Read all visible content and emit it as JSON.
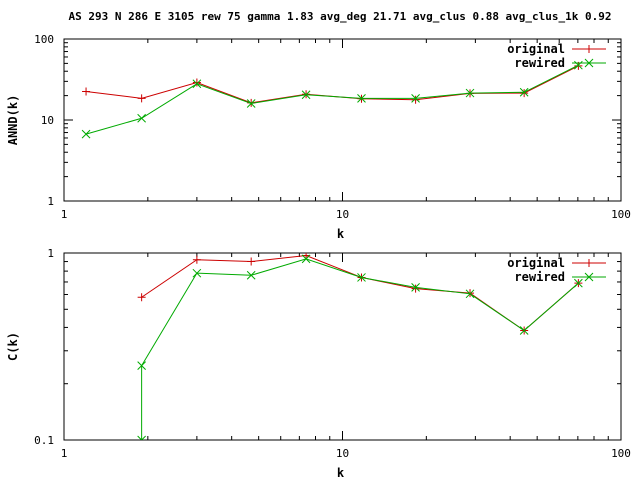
{
  "page_title": "AS 293 N 286 E 3105 rew 75 gamma 1.83 avg_deg 21.71 avg_clus 0.88 avg_clus_1k 0.92",
  "colors": {
    "original": "#cc0000",
    "rewired": "#00aa00",
    "axes": "#000000"
  },
  "chart_data": [
    {
      "type": "line",
      "xlabel": "k",
      "ylabel": "ANND(k)",
      "xscale": "log",
      "yscale": "log",
      "xlim": [
        1,
        100
      ],
      "ylim": [
        1,
        100
      ],
      "xticks": [
        {
          "value": 1,
          "label": "1"
        },
        {
          "value": 10,
          "label": "10"
        },
        {
          "value": 100,
          "label": "100"
        }
      ],
      "yticks": [
        {
          "value": 1,
          "label": "1"
        },
        {
          "value": 10,
          "label": "10"
        },
        {
          "value": 100,
          "label": "100"
        }
      ],
      "grid": false,
      "legend_position": "top-right",
      "series": [
        {
          "name": "original",
          "marker": "plus",
          "points": [
            [
              1.2,
              22.5
            ],
            [
              1.9,
              18.5
            ],
            [
              3.0,
              29.0
            ],
            [
              4.7,
              16.3
            ],
            [
              7.4,
              20.8
            ],
            [
              11.7,
              18.3
            ],
            [
              18.3,
              17.8
            ],
            [
              28.7,
              21.3
            ],
            [
              44.9,
              21.5
            ],
            [
              70.3,
              46.5
            ]
          ]
        },
        {
          "name": "rewired",
          "marker": "cross",
          "points": [
            [
              1.2,
              6.7
            ],
            [
              1.9,
              10.5
            ],
            [
              3.0,
              28.0
            ],
            [
              4.7,
              16.0
            ],
            [
              7.4,
              20.5
            ],
            [
              11.7,
              18.5
            ],
            [
              18.3,
              18.5
            ],
            [
              28.7,
              21.5
            ],
            [
              44.9,
              22.0
            ],
            [
              70.3,
              47.5
            ]
          ]
        }
      ]
    },
    {
      "type": "line",
      "xlabel": "k",
      "ylabel": "C(k)",
      "xscale": "log",
      "yscale": "log",
      "xlim": [
        1,
        100
      ],
      "ylim": [
        0.1,
        1
      ],
      "xticks": [
        {
          "value": 1,
          "label": "1"
        },
        {
          "value": 10,
          "label": "10"
        },
        {
          "value": 100,
          "label": "100"
        }
      ],
      "yticks": [
        {
          "value": 0.1,
          "label": "0.1"
        },
        {
          "value": 1,
          "label": "1"
        }
      ],
      "grid": false,
      "legend_position": "top-right",
      "series": [
        {
          "name": "original",
          "marker": "plus",
          "points": [
            [
              1.9,
              0.58
            ],
            [
              3.0,
              0.92
            ],
            [
              4.7,
              0.9
            ],
            [
              7.4,
              0.97
            ],
            [
              11.7,
              0.74
            ],
            [
              18.3,
              0.645
            ],
            [
              28.7,
              0.61
            ],
            [
              44.9,
              0.385
            ],
            [
              70.3,
              0.69
            ]
          ]
        },
        {
          "name": "rewired",
          "marker": "cross",
          "points": [
            [
              1.9,
              0.1
            ],
            [
              1.9,
              0.25
            ],
            [
              3.0,
              0.78
            ],
            [
              4.7,
              0.76
            ],
            [
              7.4,
              0.93
            ],
            [
              11.7,
              0.74
            ],
            [
              18.3,
              0.655
            ],
            [
              28.7,
              0.605
            ],
            [
              44.9,
              0.385
            ],
            [
              70.3,
              0.69
            ]
          ]
        }
      ]
    }
  ]
}
